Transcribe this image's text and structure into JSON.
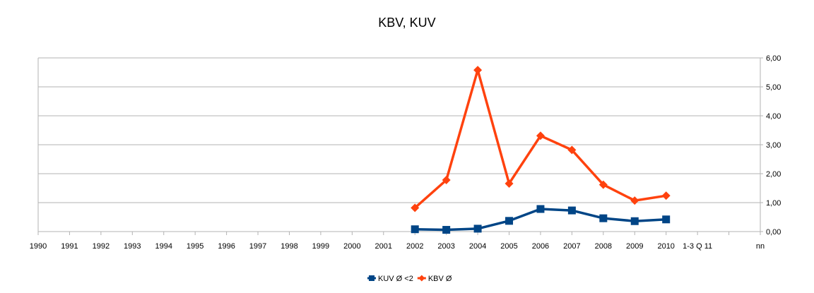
{
  "chart_data": {
    "type": "line",
    "title": "KBV, KUV",
    "xlabel": "",
    "ylabel": "",
    "categories": [
      "1990",
      "1991",
      "1992",
      "1993",
      "1994",
      "1995",
      "1996",
      "1997",
      "1998",
      "1999",
      "2000",
      "2001",
      "2002",
      "2003",
      "2004",
      "2005",
      "2006",
      "2007",
      "2008",
      "2009",
      "2010",
      "1-3 Q 11",
      "",
      "nn"
    ],
    "series": [
      {
        "name": "KUV Ø <2",
        "color": "#004586",
        "marker": "square",
        "values": [
          null,
          null,
          null,
          null,
          null,
          null,
          null,
          null,
          null,
          null,
          null,
          null,
          0.08,
          0.06,
          0.1,
          0.37,
          0.78,
          0.73,
          0.46,
          0.36,
          0.42,
          null,
          null,
          null
        ]
      },
      {
        "name": "KBV Ø",
        "color": "#ff420e",
        "marker": "diamond",
        "values": [
          null,
          null,
          null,
          null,
          null,
          null,
          null,
          null,
          null,
          null,
          null,
          null,
          0.82,
          1.78,
          5.58,
          1.66,
          3.31,
          2.82,
          1.62,
          1.07,
          1.24,
          null,
          null,
          null
        ]
      }
    ],
    "ylim": [
      0,
      6
    ],
    "yticks": [
      "0,00",
      "1,00",
      "2,00",
      "3,00",
      "4,00",
      "5,00",
      "6,00"
    ],
    "y_axis_side": "right",
    "grid": true,
    "legend": "bottom"
  }
}
